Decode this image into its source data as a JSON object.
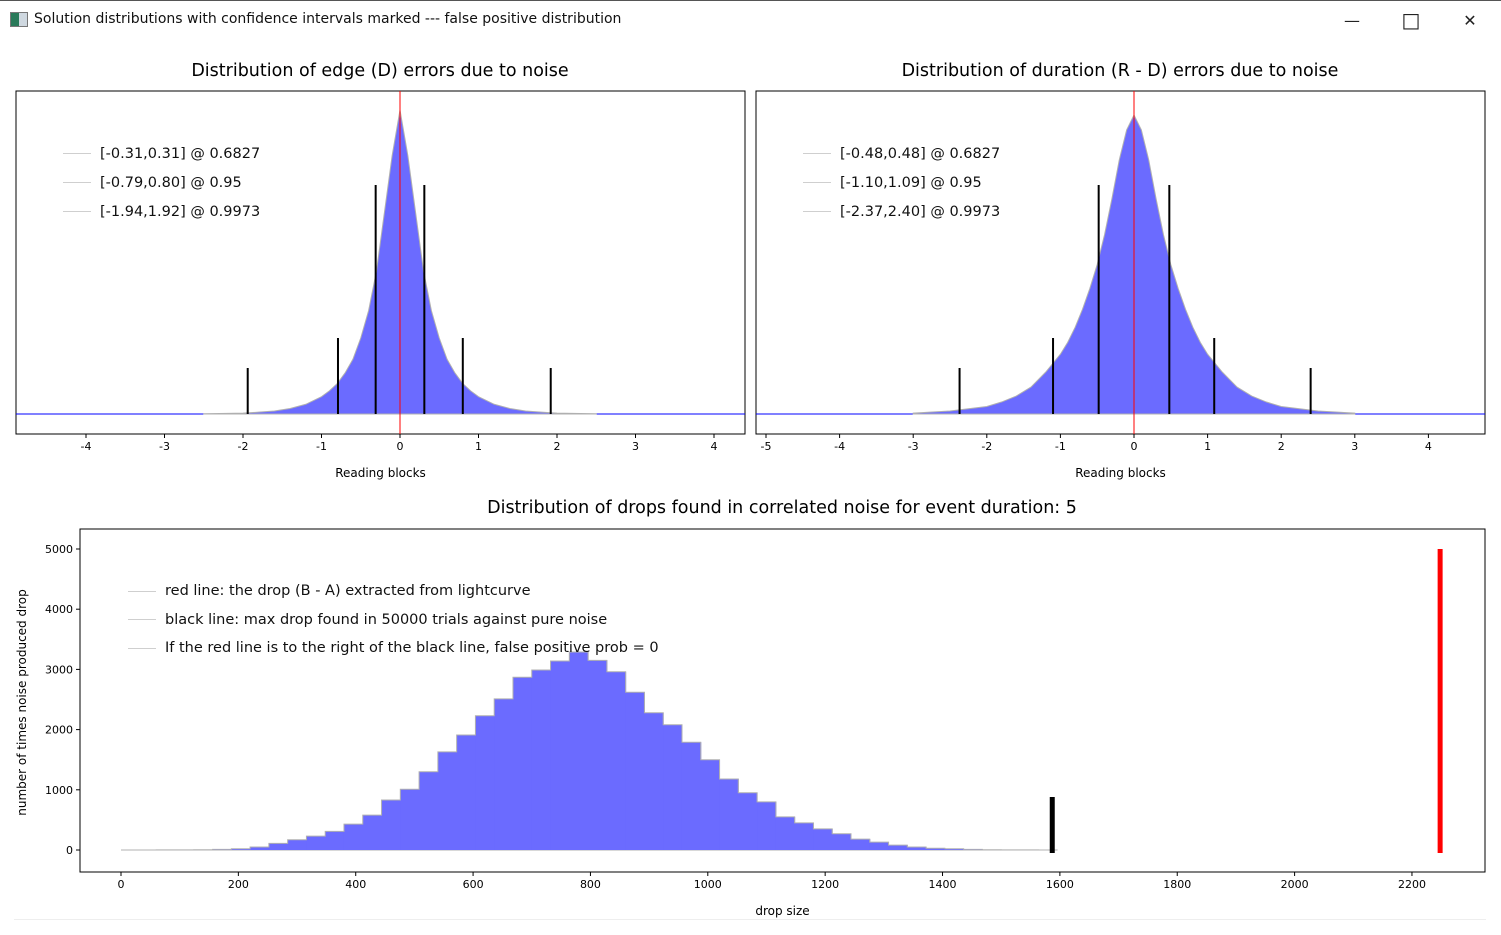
{
  "window": {
    "title": "Solution distributions with confidence intervals marked --- false positive distribution",
    "icons": {
      "app": "app-icon",
      "minimize": "minimize-icon",
      "maximize": "maximize-icon",
      "close": "close-icon"
    },
    "minimize_glyph": "—",
    "maximize_glyph": "□",
    "close_glyph": "✕"
  },
  "colors": {
    "histogram_fill": "#6b6bff",
    "histogram_edge": "#b0b0b0",
    "baseline": "#0000ff",
    "center_line": "#ff0000",
    "ci_line": "#000000",
    "red_line": "#ff0000",
    "black_line": "#000000"
  },
  "chart_data": [
    {
      "type": "area",
      "title": "Distribution of edge (D) errors due to noise",
      "xlabel": "Reading blocks",
      "ylabel": "",
      "xlim": [
        -4.55,
        4.74
      ],
      "xticks": [
        -4,
        -3,
        -2,
        -1,
        0,
        1,
        2,
        3,
        4
      ],
      "y_ticks_shown": false,
      "grid": false,
      "legend_placement": "top-left",
      "legend": [
        "[-0.31,0.31] @ 0.6827",
        "[-0.79,0.80] @ 0.95",
        "[-1.94,1.92] @ 0.9973"
      ],
      "intervals": [
        [
          -0.31,
          0.31
        ],
        [
          -0.79,
          0.8
        ],
        [
          -1.94,
          1.92
        ]
      ],
      "center": 0,
      "histogram_relative": {
        "x": [
          -2.5,
          -2.0,
          -1.8,
          -1.6,
          -1.4,
          -1.2,
          -1.0,
          -0.9,
          -0.8,
          -0.7,
          -0.6,
          -0.5,
          -0.4,
          -0.3,
          -0.2,
          -0.1,
          0,
          0.1,
          0.2,
          0.3,
          0.4,
          0.5,
          0.6,
          0.7,
          0.8,
          0.9,
          1.0,
          1.2,
          1.4,
          1.6,
          1.8,
          2.0,
          2.5
        ],
        "y": [
          0.001,
          0.003,
          0.006,
          0.01,
          0.018,
          0.032,
          0.057,
          0.076,
          0.1,
          0.135,
          0.18,
          0.25,
          0.34,
          0.47,
          0.66,
          0.85,
          1,
          0.85,
          0.66,
          0.47,
          0.34,
          0.25,
          0.18,
          0.135,
          0.1,
          0.076,
          0.057,
          0.032,
          0.018,
          0.01,
          0.006,
          0.003,
          0.001
        ]
      }
    },
    {
      "type": "area",
      "title": "Distribution of duration (R - D) errors due to noise",
      "xlabel": "Reading blocks",
      "ylabel": "",
      "xlim": [
        -5.13,
        4.78
      ],
      "xticks": [
        -5,
        -4,
        -3,
        -2,
        -1,
        0,
        1,
        2,
        3,
        4
      ],
      "y_ticks_shown": false,
      "grid": false,
      "legend_placement": "top-left",
      "legend": [
        "[-0.48,0.48] @ 0.6827",
        "[-1.10,1.09] @ 0.95",
        "[-2.37,2.40] @ 0.9973"
      ],
      "intervals": [
        [
          -0.48,
          0.48
        ],
        [
          -1.1,
          1.09
        ],
        [
          -2.37,
          2.4
        ]
      ],
      "center": 0,
      "histogram_relative": {
        "x": [
          -3.0,
          -2.5,
          -2.0,
          -1.8,
          -1.6,
          -1.4,
          -1.2,
          -1.0,
          -0.9,
          -0.8,
          -0.7,
          -0.6,
          -0.5,
          -0.4,
          -0.3,
          -0.2,
          -0.1,
          0,
          0.1,
          0.2,
          0.3,
          0.4,
          0.5,
          0.6,
          0.7,
          0.8,
          0.9,
          1.0,
          1.2,
          1.4,
          1.6,
          1.8,
          2.0,
          2.5,
          3.0
        ],
        "y": [
          0.003,
          0.01,
          0.025,
          0.04,
          0.06,
          0.09,
          0.14,
          0.2,
          0.24,
          0.29,
          0.35,
          0.42,
          0.5,
          0.6,
          0.72,
          0.85,
          0.95,
          1,
          0.95,
          0.85,
          0.72,
          0.6,
          0.5,
          0.42,
          0.35,
          0.29,
          0.24,
          0.2,
          0.14,
          0.09,
          0.06,
          0.04,
          0.025,
          0.01,
          0.003
        ]
      }
    },
    {
      "type": "bar",
      "title": "Distribution of drops found in correlated noise for event duration: 5",
      "xlabel": "drop size",
      "ylabel": "number of times noise produced drop",
      "xlim": [
        -70,
        2340
      ],
      "ylim": [
        -370,
        5330
      ],
      "xticks": [
        0,
        200,
        400,
        600,
        800,
        1000,
        1200,
        1400,
        1600,
        1800,
        2000,
        2200
      ],
      "yticks": [
        0,
        1000,
        2000,
        3000,
        4000,
        5000
      ],
      "grid": false,
      "legend_placement": "top-left",
      "legend": [
        "red line: the drop (B - A) extracted from lightcurve",
        "black line: max drop found in 50000 trials against pure noise",
        "If the red line is to the right of the black line, false positive prob = 0"
      ],
      "bin_width": 32,
      "bins_left_edge": [
        28,
        60,
        92,
        124,
        156,
        188,
        220,
        252,
        284,
        316,
        348,
        380,
        412,
        444,
        476,
        508,
        540,
        572,
        604,
        636,
        668,
        700,
        732,
        764,
        796,
        828,
        860,
        892,
        924,
        956,
        988,
        1020,
        1052,
        1084,
        1116,
        1148,
        1180,
        1212,
        1244,
        1276,
        1308,
        1340,
        1372,
        1404,
        1436,
        1468,
        1500,
        1532,
        1564
      ],
      "counts": [
        1,
        2,
        3,
        5,
        10,
        20,
        50,
        110,
        170,
        230,
        310,
        430,
        580,
        830,
        1010,
        1300,
        1630,
        1910,
        2230,
        2510,
        2870,
        2990,
        3140,
        3290,
        3150,
        2960,
        2620,
        2280,
        2080,
        1790,
        1500,
        1180,
        950,
        800,
        550,
        450,
        350,
        270,
        180,
        130,
        80,
        50,
        30,
        20,
        10,
        5,
        3,
        2,
        1
      ],
      "red_line": {
        "x": 2248,
        "height": 5000
      },
      "black_line": {
        "x": 1587,
        "height": 880
      }
    }
  ]
}
